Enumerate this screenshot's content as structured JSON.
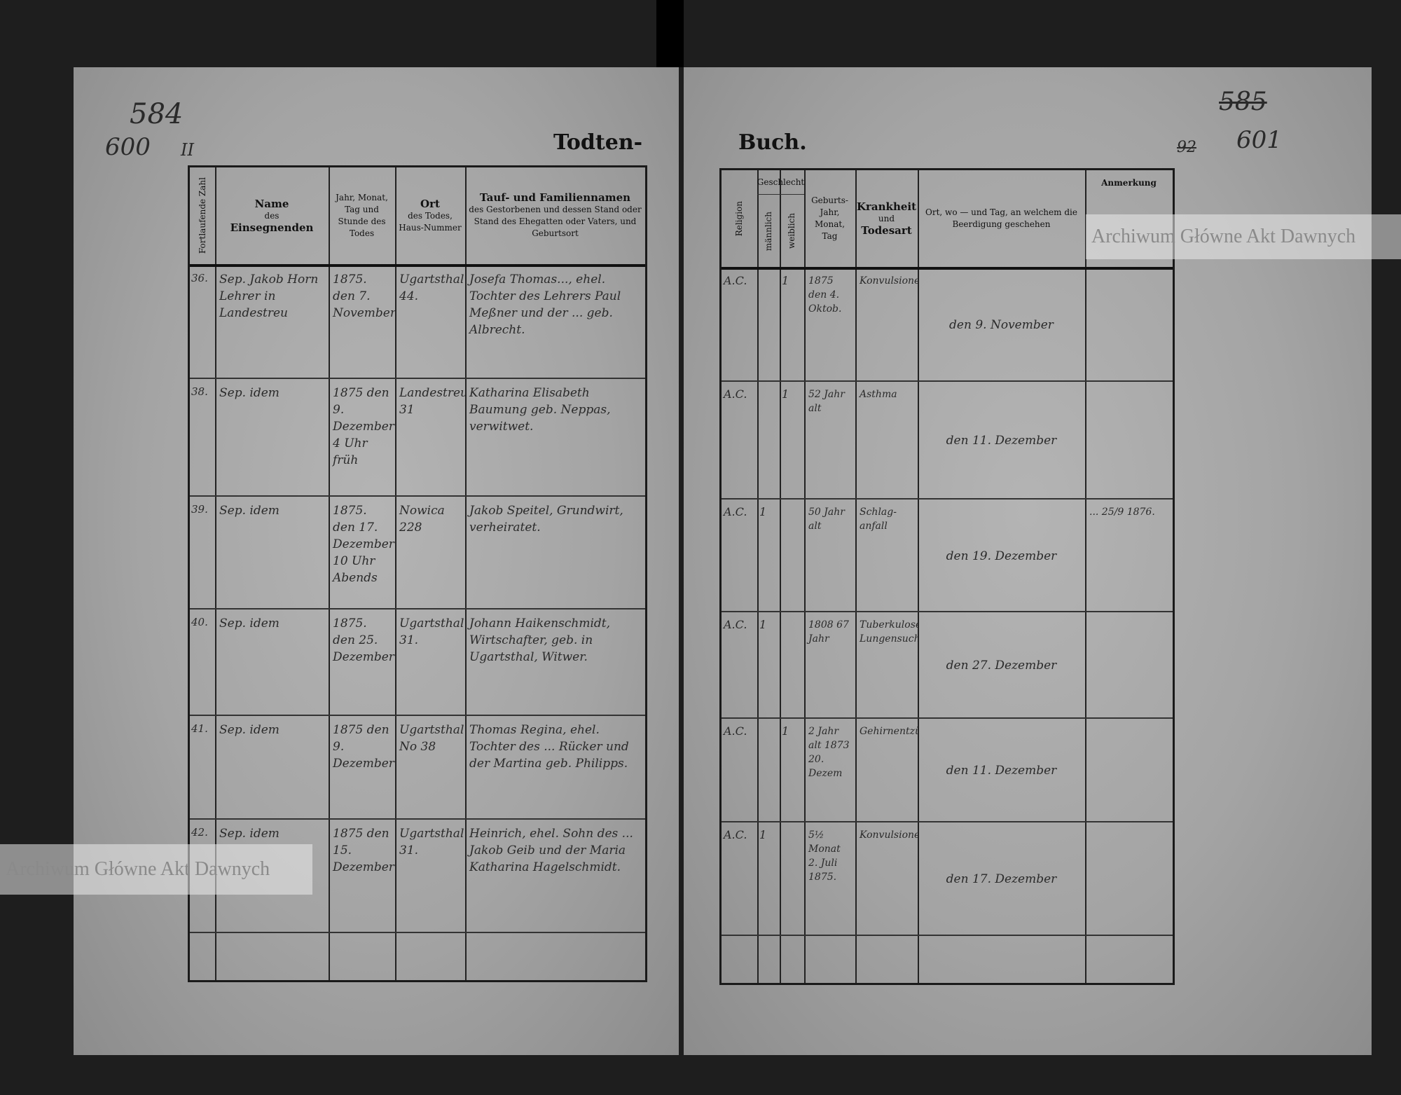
{
  "page_numbers": {
    "left_old": "584",
    "left_new": "600",
    "left_mark": "II",
    "right_old": "585",
    "right_new": "601",
    "right_mark": "92"
  },
  "title_left": "Todten-",
  "title_right": "Buch.",
  "watermark": "Archiwum Główne Akt Dawnych",
  "left_headers": [
    {
      "key": "nr",
      "label": "Fortlaufende Zahl"
    },
    {
      "key": "name",
      "bold": "Name",
      "label": "des",
      "bold2": "Einsegnenden"
    },
    {
      "key": "date",
      "label": "Jahr, Monat, Tag und Stunde des Todes"
    },
    {
      "key": "place",
      "bold": "Ort",
      "label": "des Todes, Haus-Nummer"
    },
    {
      "key": "deceased",
      "bold": "Tauf- und Familiennamen",
      "label": "des Gestorbenen und dessen Stand oder Stand des Ehegatten oder Vaters, und Geburtsort"
    }
  ],
  "right_headers": [
    {
      "key": "religion",
      "label": "Religion"
    },
    {
      "key": "sex_group",
      "label": "Geschlecht"
    },
    {
      "key": "male",
      "label": "männlich"
    },
    {
      "key": "female",
      "label": "weiblich"
    },
    {
      "key": "birth",
      "label": "Geburts-Jahr, Monat, Tag"
    },
    {
      "key": "disease",
      "bold": "Krankheit",
      "label": "und",
      "bold2": "Todesart"
    },
    {
      "key": "burial",
      "label": "Ort, wo — und Tag, an welchem die Beerdigung geschehen"
    },
    {
      "key": "note",
      "label": "Anmerkung"
    }
  ],
  "rows": [
    {
      "nr": "36.",
      "name": "Sep. Jakob Horn Lehrer in Landestreu",
      "date": "1875. den 7. November",
      "place": "Ugartsthal 44.",
      "deceased": "Josefa Thomas..., ehel. Tochter des Lehrers Paul Meßner und der ... geb. Albrecht.",
      "religion": "A.C.",
      "male": "",
      "female": "1",
      "birth": "1875 den 4. Oktob.",
      "disease": "Konvulsionen",
      "burial": "den 9. November",
      "note": ""
    },
    {
      "nr": "38.",
      "name": "Sep. idem",
      "date": "1875 den 9. Dezember 4 Uhr früh",
      "place": "Landestreu 31",
      "deceased": "Katharina Elisabeth Baumung geb. Neppas, verwitwet.",
      "religion": "A.C.",
      "male": "",
      "female": "1",
      "birth": "52 Jahr alt",
      "disease": "Asthma",
      "burial": "den 11. Dezember",
      "note": ""
    },
    {
      "nr": "39.",
      "name": "Sep. idem",
      "date": "1875. den 17. Dezember 10 Uhr Abends",
      "place": "Nowica 228",
      "deceased": "Jakob Speitel, Grundwirt, verheiratet.",
      "religion": "A.C.",
      "male": "1",
      "female": "",
      "birth": "50 Jahr alt",
      "disease": "Schlag-anfall",
      "burial": "den 19. Dezember",
      "note": "... 25/9 1876."
    },
    {
      "nr": "40.",
      "name": "Sep. idem",
      "date": "1875. den 25. Dezember",
      "place": "Ugartsthal 31.",
      "deceased": "Johann Haikenschmidt, Wirtschafter, geb. in Ugartsthal, Witwer.",
      "religion": "A.C.",
      "male": "1",
      "female": "",
      "birth": "1808 67 Jahr",
      "disease": "Tuberkulose Lungensucht",
      "burial": "den 27. Dezember",
      "note": ""
    },
    {
      "nr": "41.",
      "name": "Sep. idem",
      "date": "1875 den 9. Dezember",
      "place": "Ugartsthal No 38",
      "deceased": "Thomas Regina, ehel. Tochter des ... Rücker und der Martina geb. Philipps.",
      "religion": "A.C.",
      "male": "",
      "female": "1",
      "birth": "2 Jahr alt 1873 20. Dezem",
      "disease": "Gehirnentzündung",
      "burial": "den 11. Dezember",
      "note": ""
    },
    {
      "nr": "42.",
      "name": "Sep. idem",
      "date": "1875 den 15. Dezember",
      "place": "Ugartsthal 31.",
      "deceased": "Heinrich, ehel. Sohn des ... Jakob Geib und der Maria Katharina Hagelschmidt.",
      "religion": "A.C.",
      "male": "1",
      "female": "",
      "birth": "5½ Monat 2. Juli 1875.",
      "disease": "Konvulsionen",
      "burial": "den 17. Dezember",
      "note": ""
    }
  ]
}
